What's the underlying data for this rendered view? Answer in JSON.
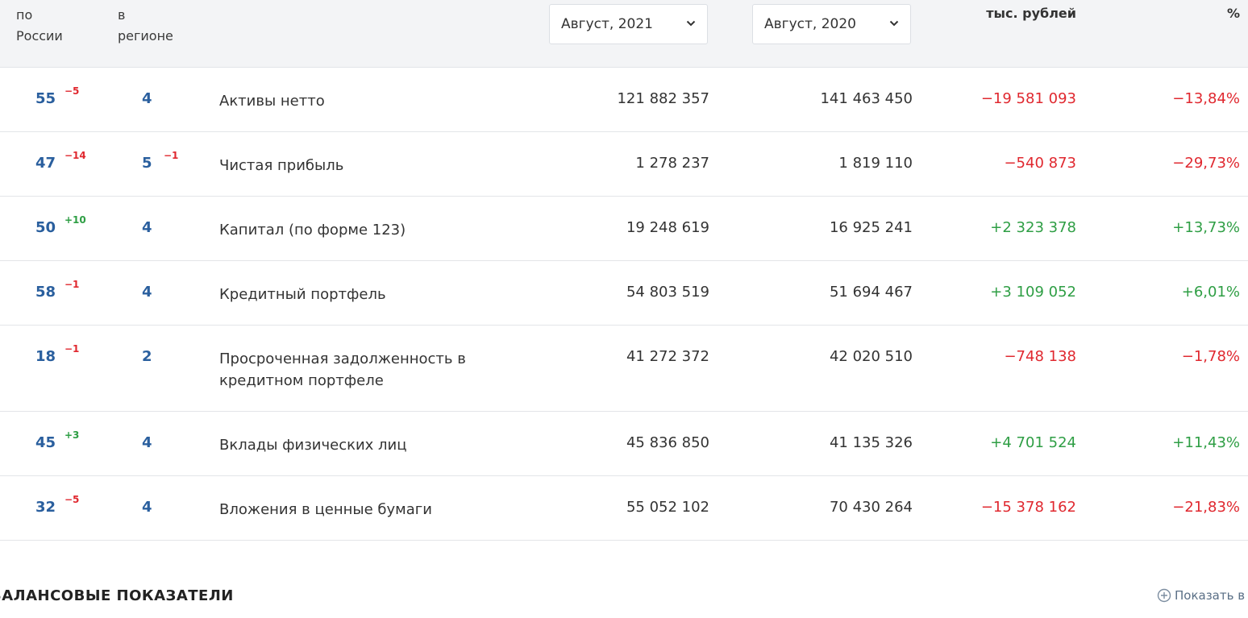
{
  "header": {
    "col_russia": [
      "по",
      "России"
    ],
    "col_region": [
      "в",
      "регионе"
    ],
    "period_current": "Август, 2021",
    "period_compare": "Август, 2020",
    "col_thousands": "тыс. рублей",
    "col_percent": "%"
  },
  "rows": [
    {
      "rank_russia": "55",
      "delta_russia": "−5",
      "rank_region": "4",
      "delta_region": "",
      "name": "Активы нетто",
      "v2021": "121 882 357",
      "v2020": "141 463 450",
      "diff": "−19 581 093",
      "pct": "−13,84%"
    },
    {
      "rank_russia": "47",
      "delta_russia": "−14",
      "rank_region": "5",
      "delta_region": "−1",
      "name": "Чистая прибыль",
      "v2021": "1 278 237",
      "v2020": "1 819 110",
      "diff": "−540 873",
      "pct": "−29,73%"
    },
    {
      "rank_russia": "50",
      "delta_russia": "+10",
      "rank_region": "4",
      "delta_region": "",
      "name": "Капитал (по форме 123)",
      "v2021": "19 248 619",
      "v2020": "16 925 241",
      "diff": "+2 323 378",
      "pct": "+13,73%"
    },
    {
      "rank_russia": "58",
      "delta_russia": "−1",
      "rank_region": "4",
      "delta_region": "",
      "name": "Кредитный портфель",
      "v2021": "54 803 519",
      "v2020": "51 694 467",
      "diff": "+3 109 052",
      "pct": "+6,01%"
    },
    {
      "rank_russia": "18",
      "delta_russia": "−1",
      "rank_region": "2",
      "delta_region": "",
      "name": "Просроченная задолженность в кредитном портфеле",
      "v2021": "41 272 372",
      "v2020": "42 020 510",
      "diff": "−748 138",
      "pct": "−1,78%"
    },
    {
      "rank_russia": "45",
      "delta_russia": "+3",
      "rank_region": "4",
      "delta_region": "",
      "name": "Вклады физических лиц",
      "v2021": "45 836 850",
      "v2020": "41 135 326",
      "diff": "+4 701 524",
      "pct": "+11,43%"
    },
    {
      "rank_russia": "32",
      "delta_russia": "−5",
      "rank_region": "4",
      "delta_region": "",
      "name": "Вложения в ценные бумаги",
      "v2021": "55 052 102",
      "v2020": "70 430 264",
      "diff": "−15 378 162",
      "pct": "−21,83%"
    }
  ],
  "section": {
    "title": "БАЛАНСОВЫЕ ПОКАЗАТЕЛИ",
    "show_all": "Показать в"
  },
  "colors": {
    "negative": "#e0282f",
    "positive": "#2e9e44",
    "rank": "#2a5f9e"
  }
}
